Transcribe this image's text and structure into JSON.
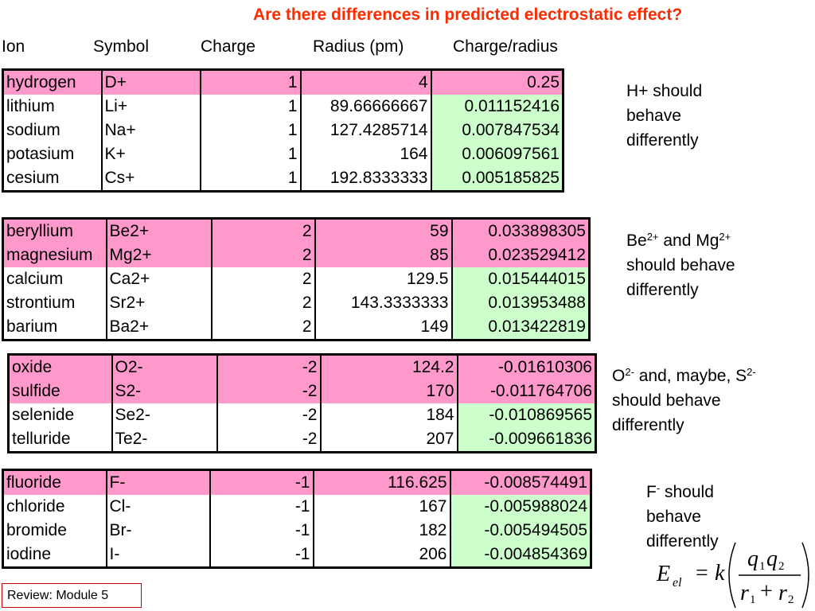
{
  "title": "Are there differences in predicted electrostatic effect?",
  "headers": {
    "ion": "Ion",
    "symbol": "Symbol",
    "charge": "Charge",
    "radius": "Radius (pm)",
    "ratio": "Charge/radius"
  },
  "groups": [
    {
      "rows": [
        {
          "ion": "hydrogen",
          "symbol": "D+",
          "charge": "1",
          "radius": "4",
          "ratio": "0.25",
          "highlight": true
        },
        {
          "ion": "lithium",
          "symbol": "Li+",
          "charge": "1",
          "radius": "89.66666667",
          "ratio": "0.011152416",
          "highlight": false
        },
        {
          "ion": "sodium",
          "symbol": "Na+",
          "charge": "1",
          "radius": "127.4285714",
          "ratio": "0.007847534",
          "highlight": false
        },
        {
          "ion": "potasium",
          "symbol": "K+",
          "charge": "1",
          "radius": "164",
          "ratio": "0.006097561",
          "highlight": false
        },
        {
          "ion": "cesium",
          "symbol": "Cs+",
          "charge": "1",
          "radius": "192.8333333",
          "ratio": "0.005185825",
          "highlight": false
        }
      ]
    },
    {
      "rows": [
        {
          "ion": "beryllium",
          "symbol": "Be2+",
          "charge": "2",
          "radius": "59",
          "ratio": "0.033898305",
          "highlight": true
        },
        {
          "ion": "magnesium",
          "symbol": "Mg2+",
          "charge": "2",
          "radius": "85",
          "ratio": "0.023529412",
          "highlight": true
        },
        {
          "ion": "calcium",
          "symbol": "Ca2+",
          "charge": "2",
          "radius": "129.5",
          "ratio": "0.015444015",
          "highlight": false
        },
        {
          "ion": "strontium",
          "symbol": "Sr2+",
          "charge": "2",
          "radius": "143.3333333",
          "ratio": "0.013953488",
          "highlight": false
        },
        {
          "ion": "barium",
          "symbol": "Ba2+",
          "charge": "2",
          "radius": "149",
          "ratio": "0.013422819",
          "highlight": false
        }
      ]
    },
    {
      "rows": [
        {
          "ion": "oxide",
          "symbol": "O2-",
          "charge": "-2",
          "radius": "124.2",
          "ratio": "-0.01610306",
          "highlight": true
        },
        {
          "ion": "sulfide",
          "symbol": "S2-",
          "charge": "-2",
          "radius": "170",
          "ratio": "-0.011764706",
          "highlight": true
        },
        {
          "ion": "selenide",
          "symbol": "Se2-",
          "charge": "-2",
          "radius": "184",
          "ratio": "-0.010869565",
          "highlight": false
        },
        {
          "ion": "telluride",
          "symbol": "Te2-",
          "charge": "-2",
          "radius": "207",
          "ratio": "-0.009661836",
          "highlight": false
        }
      ]
    },
    {
      "rows": [
        {
          "ion": "fluoride",
          "symbol": "F-",
          "charge": "-1",
          "radius": "116.625",
          "ratio": "-0.008574491",
          "highlight": true
        },
        {
          "ion": "chloride",
          "symbol": "Cl-",
          "charge": "-1",
          "radius": "167",
          "ratio": "-0.005988024",
          "highlight": false
        },
        {
          "ion": "bromide",
          "symbol": "Br-",
          "charge": "-1",
          "radius": "182",
          "ratio": "-0.005494505",
          "highlight": false
        },
        {
          "ion": "iodine",
          "symbol": "I-",
          "charge": "-1",
          "radius": "206",
          "ratio": "-0.004854369",
          "highlight": false
        }
      ]
    }
  ],
  "notes": {
    "n1": {
      "line1": "H+ should",
      "line2": "behave",
      "line3": "differently"
    },
    "n2": {
      "be": "Be",
      "be_sup": "2+",
      "and": " and Mg",
      "mg_sup": "2+",
      "line2": "should behave",
      "line3": "differently"
    },
    "n3": {
      "o": "O",
      "o_sup": "2-",
      "mid": " and, maybe, S",
      "s_sup": "2-",
      "line2": "should behave",
      "line3": "differently"
    },
    "n4": {
      "f": "F",
      "f_sup": "-",
      "rest": " should",
      "line2": "behave",
      "line3": "differently"
    }
  },
  "footer": "Review: Module 5",
  "formula": {
    "lhs": "E",
    "lhs_sub": "el",
    "eq": "=",
    "k": "k",
    "num1": "q",
    "num1_sub": "1",
    "num2": "q",
    "num2_sub": "2",
    "den1": "r",
    "den1_sub": "1",
    "plus": "+",
    "den2": "r",
    "den2_sub": "2"
  },
  "colors": {
    "title": "#ff2a00",
    "highlight": "#ff99cc",
    "ratio_bg": "#ccffcc",
    "footer_border": "#cc0000"
  }
}
